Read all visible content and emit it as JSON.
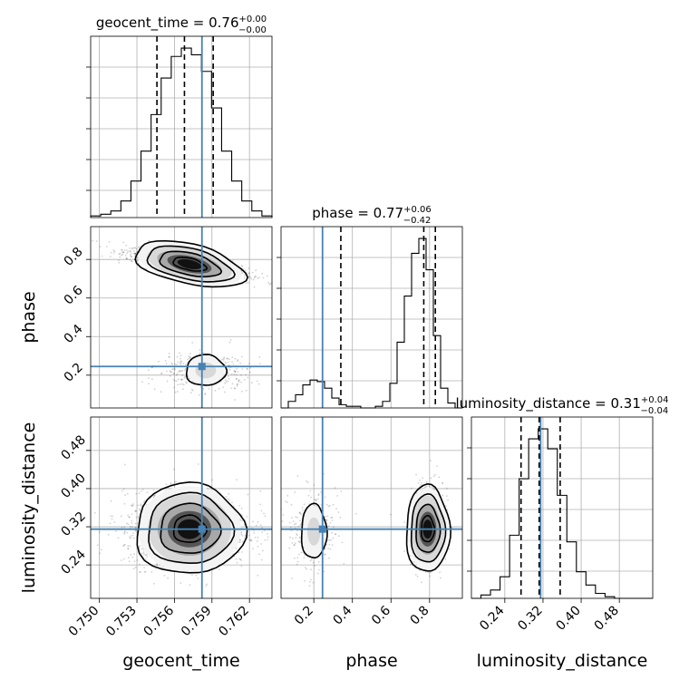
{
  "chart_data": {
    "type": "corner",
    "parameters": [
      "geocent_time",
      "phase",
      "luminosity_distance"
    ],
    "truth": {
      "geocent_time": 0.7582,
      "phase": 0.245,
      "luminosity_distance": 0.315
    },
    "truth_color": "#4682b4",
    "panels": {
      "geocent_time": {
        "title": "geocent_time = 0.76",
        "title_sup": "+0.00",
        "title_sub": "−0.00",
        "range": [
          0.7493,
          0.7638
        ],
        "quantiles": [
          0.7546,
          0.7568,
          0.7591
        ],
        "hist": [
          1,
          2,
          4,
          10,
          22,
          40,
          62,
          84,
          97,
          102,
          98,
          88,
          66,
          40,
          22,
          10,
          4,
          1
        ],
        "ticks": [
          0.75,
          0.753,
          0.756,
          0.759,
          0.762
        ],
        "tick_labels": [
          "0.750",
          "0.753",
          "0.756",
          "0.759",
          "0.762"
        ]
      },
      "phase": {
        "title": "phase = 0.77",
        "title_sup": "+0.06",
        "title_sub": "−0.42",
        "range": [
          0.03,
          0.97
        ],
        "quantiles": [
          0.34,
          0.77,
          0.83
        ],
        "hist": [
          0,
          4,
          8,
          14,
          17,
          16,
          12,
          6,
          2,
          1,
          1,
          0,
          0,
          1,
          4,
          15,
          40,
          68,
          94,
          103,
          84,
          44,
          12,
          3,
          0
        ],
        "ticks": [
          0.2,
          0.4,
          0.6,
          0.8
        ],
        "tick_labels": [
          "0.2",
          "0.4",
          "0.6",
          "0.8"
        ]
      },
      "luminosity_distance": {
        "title": "luminosity_distance = 0.31",
        "title_sup": "+0.04",
        "title_sub": "−0.04",
        "range": [
          0.17,
          0.55
        ],
        "quantiles": [
          0.274,
          0.312,
          0.356
        ],
        "hist": [
          0,
          2,
          5,
          13,
          38,
          72,
          96,
          102,
          90,
          62,
          34,
          16,
          8,
          3,
          1,
          0,
          0,
          0,
          0
        ],
        "ticks": [
          0.24,
          0.32,
          0.4,
          0.48
        ],
        "tick_labels": [
          "0.24",
          "0.32",
          "0.40",
          "0.48"
        ]
      }
    },
    "axis_labels": {
      "geocent_time": "geocent_time",
      "phase": "phase",
      "luminosity_distance": "luminosity_distance"
    },
    "grid": true
  }
}
